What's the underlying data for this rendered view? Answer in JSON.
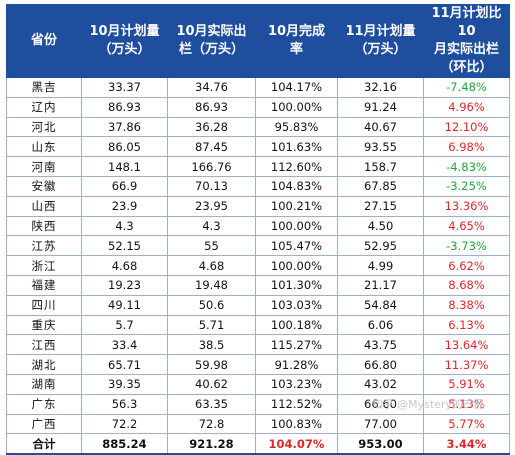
{
  "table": {
    "headers": [
      "省份",
      "10月计划量\n（万头）",
      "10月实际出\n栏（万头）",
      "10月完成\n率",
      "11月计划量\n（万头）",
      "11月计划比10\n月实际出栏\n（环比）"
    ],
    "rows": [
      {
        "province": "黑吉",
        "oct_plan": "33.37",
        "oct_actual": "34.76",
        "oct_rate": "104.17%",
        "nov_plan": "32.16",
        "mom": "-7.48%",
        "dir": "neg"
      },
      {
        "province": "辽内",
        "oct_plan": "86.93",
        "oct_actual": "86.93",
        "oct_rate": "100.00%",
        "nov_plan": "91.24",
        "mom": "4.96%",
        "dir": "pos"
      },
      {
        "province": "河北",
        "oct_plan": "37.86",
        "oct_actual": "36.28",
        "oct_rate": "95.83%",
        "nov_plan": "40.67",
        "mom": "12.10%",
        "dir": "pos"
      },
      {
        "province": "山东",
        "oct_plan": "86.05",
        "oct_actual": "87.45",
        "oct_rate": "101.63%",
        "nov_plan": "93.55",
        "mom": "6.98%",
        "dir": "pos"
      },
      {
        "province": "河南",
        "oct_plan": "148.1",
        "oct_actual": "166.76",
        "oct_rate": "112.60%",
        "nov_plan": "158.7",
        "mom": "-4.83%",
        "dir": "neg"
      },
      {
        "province": "安徽",
        "oct_plan": "66.9",
        "oct_actual": "70.13",
        "oct_rate": "104.83%",
        "nov_plan": "67.85",
        "mom": "-3.25%",
        "dir": "neg"
      },
      {
        "province": "山西",
        "oct_plan": "23.9",
        "oct_actual": "23.95",
        "oct_rate": "100.21%",
        "nov_plan": "27.15",
        "mom": "13.36%",
        "dir": "pos"
      },
      {
        "province": "陕西",
        "oct_plan": "4.3",
        "oct_actual": "4.3",
        "oct_rate": "100.00%",
        "nov_plan": "4.50",
        "mom": "4.65%",
        "dir": "pos"
      },
      {
        "province": "江苏",
        "oct_plan": "52.15",
        "oct_actual": "55",
        "oct_rate": "105.47%",
        "nov_plan": "52.95",
        "mom": "-3.73%",
        "dir": "neg"
      },
      {
        "province": "浙江",
        "oct_plan": "4.68",
        "oct_actual": "4.68",
        "oct_rate": "100.00%",
        "nov_plan": "4.99",
        "mom": "6.62%",
        "dir": "pos"
      },
      {
        "province": "福建",
        "oct_plan": "19.23",
        "oct_actual": "19.48",
        "oct_rate": "101.30%",
        "nov_plan": "21.17",
        "mom": "8.68%",
        "dir": "pos"
      },
      {
        "province": "四川",
        "oct_plan": "49.11",
        "oct_actual": "50.6",
        "oct_rate": "103.03%",
        "nov_plan": "54.84",
        "mom": "8.38%",
        "dir": "pos"
      },
      {
        "province": "重庆",
        "oct_plan": "5.7",
        "oct_actual": "5.71",
        "oct_rate": "100.18%",
        "nov_plan": "6.06",
        "mom": "6.13%",
        "dir": "pos"
      },
      {
        "province": "江西",
        "oct_plan": "33.4",
        "oct_actual": "38.5",
        "oct_rate": "115.27%",
        "nov_plan": "43.75",
        "mom": "13.64%",
        "dir": "pos"
      },
      {
        "province": "湖北",
        "oct_plan": "65.71",
        "oct_actual": "59.98",
        "oct_rate": "91.28%",
        "nov_plan": "66.80",
        "mom": "11.37%",
        "dir": "pos"
      },
      {
        "province": "湖南",
        "oct_plan": "39.35",
        "oct_actual": "40.62",
        "oct_rate": "103.23%",
        "nov_plan": "43.02",
        "mom": "5.91%",
        "dir": "pos"
      },
      {
        "province": "广东",
        "oct_plan": "56.3",
        "oct_actual": "63.35",
        "oct_rate": "112.52%",
        "nov_plan": "66.60",
        "mom": "5.13%",
        "dir": "pos"
      },
      {
        "province": "广西",
        "oct_plan": "72.2",
        "oct_actual": "72.8",
        "oct_rate": "100.83%",
        "nov_plan": "77.00",
        "mom": "5.77%",
        "dir": "pos"
      }
    ],
    "total": {
      "province": "合计",
      "oct_plan": "885.24",
      "oct_actual": "921.28",
      "oct_rate": "104.07%",
      "nov_plan": "953.00",
      "mom": "3.44%"
    }
  },
  "watermark": "知乎 @Mystery的产品",
  "colors": {
    "header_bg": "#1f4e9e",
    "negative": "#1ea538",
    "positive": "#e0262b"
  }
}
